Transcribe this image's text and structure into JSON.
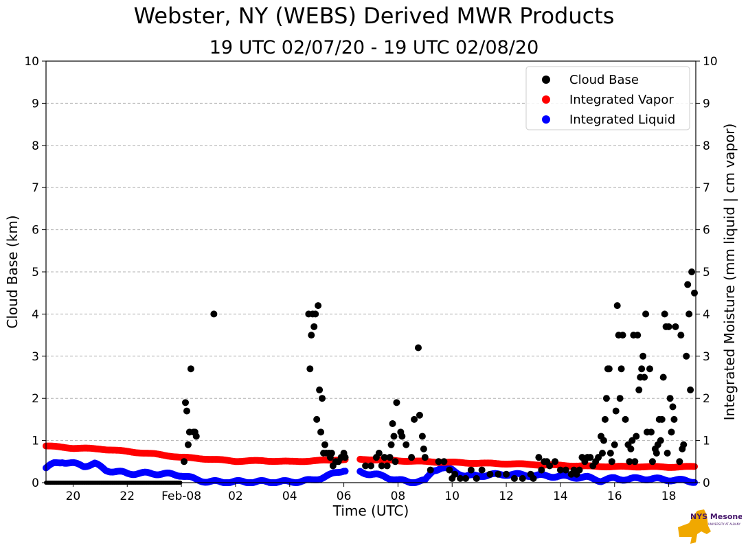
{
  "title": "Webster, NY (WEBS) Derived MWR Products",
  "subtitle": "19 UTC 02/07/20 - 19 UTC 02/08/20",
  "logo": {
    "text": "NYS Mesonet",
    "subtext": "UNIVERSITY AT ALBANY"
  },
  "colors": {
    "cloud_base": "#000000",
    "vapor": "#ff0000",
    "liquid": "#0000ff",
    "grid": "#b0b0b0",
    "logo_gold": "#f0a800",
    "logo_purple": "#46166b"
  },
  "chart_data": {
    "type": "scatter",
    "xlabel": "Time (UTC)",
    "ylabel": "Cloud Base (km)",
    "y2label": "Integrated Moisture (mm liquid | cm vapor)",
    "xlim": [
      0,
      24
    ],
    "x_unit": "hours since 19 UTC 02/07/20",
    "ylim": [
      0,
      10
    ],
    "y2lim": [
      0,
      10
    ],
    "x_ticks": [
      {
        "x": 1,
        "label": "20"
      },
      {
        "x": 3,
        "label": "22"
      },
      {
        "x": 5,
        "label": "Feb-08"
      },
      {
        "x": 7,
        "label": "02"
      },
      {
        "x": 9,
        "label": "04"
      },
      {
        "x": 11,
        "label": "06"
      },
      {
        "x": 13,
        "label": "08"
      },
      {
        "x": 15,
        "label": "10"
      },
      {
        "x": 17,
        "label": "12"
      },
      {
        "x": 19,
        "label": "14"
      },
      {
        "x": 21,
        "label": "16"
      },
      {
        "x": 23,
        "label": "18"
      }
    ],
    "y_ticks": [
      "0",
      "1",
      "2",
      "3",
      "4",
      "5",
      "6",
      "7",
      "8",
      "9",
      "10"
    ],
    "grid": "horizontal dashed",
    "legend_position": "top-right",
    "series": [
      {
        "name": "Cloud Base",
        "color": "#000000",
        "axis": "left",
        "points": [
          [
            5.1,
            0.5
          ],
          [
            5.15,
            1.9
          ],
          [
            5.2,
            1.7
          ],
          [
            5.25,
            0.9
          ],
          [
            5.3,
            1.2
          ],
          [
            5.35,
            2.7
          ],
          [
            5.45,
            1.2
          ],
          [
            5.5,
            1.2
          ],
          [
            5.55,
            1.1
          ],
          [
            6.2,
            4.0
          ],
          [
            9.7,
            4.0
          ],
          [
            9.75,
            2.7
          ],
          [
            9.8,
            3.5
          ],
          [
            9.85,
            4.0
          ],
          [
            9.9,
            3.7
          ],
          [
            9.95,
            4.0
          ],
          [
            10.0,
            1.5
          ],
          [
            10.05,
            4.2
          ],
          [
            10.1,
            2.2
          ],
          [
            10.15,
            1.2
          ],
          [
            10.2,
            2.0
          ],
          [
            10.25,
            0.7
          ],
          [
            10.3,
            0.9
          ],
          [
            10.35,
            0.7
          ],
          [
            10.45,
            0.7
          ],
          [
            10.5,
            0.6
          ],
          [
            10.55,
            0.7
          ],
          [
            10.6,
            0.4
          ],
          [
            10.7,
            0.5
          ],
          [
            10.8,
            0.5
          ],
          [
            10.9,
            0.6
          ],
          [
            11.0,
            0.7
          ],
          [
            11.05,
            0.6
          ],
          [
            11.8,
            0.4
          ],
          [
            12.0,
            0.4
          ],
          [
            12.2,
            0.6
          ],
          [
            12.3,
            0.7
          ],
          [
            12.4,
            0.4
          ],
          [
            12.5,
            0.6
          ],
          [
            12.6,
            0.4
          ],
          [
            12.7,
            0.6
          ],
          [
            12.75,
            0.9
          ],
          [
            12.8,
            1.4
          ],
          [
            12.85,
            1.1
          ],
          [
            12.9,
            0.5
          ],
          [
            12.95,
            1.9
          ],
          [
            13.1,
            1.2
          ],
          [
            13.15,
            1.1
          ],
          [
            13.3,
            0.9
          ],
          [
            13.5,
            0.6
          ],
          [
            13.6,
            1.5
          ],
          [
            13.75,
            3.2
          ],
          [
            13.8,
            1.6
          ],
          [
            13.9,
            1.1
          ],
          [
            13.95,
            0.8
          ],
          [
            14.0,
            0.6
          ],
          [
            14.2,
            0.3
          ],
          [
            14.5,
            0.5
          ],
          [
            14.7,
            0.5
          ],
          [
            14.9,
            0.3
          ],
          [
            15.0,
            0.1
          ],
          [
            15.1,
            0.2
          ],
          [
            15.3,
            0.1
          ],
          [
            15.5,
            0.1
          ],
          [
            15.7,
            0.3
          ],
          [
            15.9,
            0.1
          ],
          [
            16.1,
            0.3
          ],
          [
            16.4,
            0.2
          ],
          [
            16.7,
            0.2
          ],
          [
            17.0,
            0.2
          ],
          [
            17.3,
            0.1
          ],
          [
            17.6,
            0.1
          ],
          [
            17.9,
            0.2
          ],
          [
            18.0,
            0.1
          ],
          [
            18.2,
            0.6
          ],
          [
            18.3,
            0.3
          ],
          [
            18.4,
            0.5
          ],
          [
            18.5,
            0.5
          ],
          [
            18.6,
            0.4
          ],
          [
            18.8,
            0.5
          ],
          [
            19.0,
            0.3
          ],
          [
            19.2,
            0.3
          ],
          [
            19.4,
            0.2
          ],
          [
            19.5,
            0.3
          ],
          [
            19.6,
            0.2
          ],
          [
            19.7,
            0.3
          ],
          [
            19.8,
            0.6
          ],
          [
            19.9,
            0.5
          ],
          [
            20.0,
            0.6
          ],
          [
            20.1,
            0.6
          ],
          [
            20.2,
            0.4
          ],
          [
            20.3,
            0.5
          ],
          [
            20.4,
            0.6
          ],
          [
            20.5,
            1.1
          ],
          [
            20.55,
            0.7
          ],
          [
            20.6,
            1.0
          ],
          [
            20.65,
            1.5
          ],
          [
            20.7,
            2.0
          ],
          [
            20.75,
            2.7
          ],
          [
            20.8,
            2.7
          ],
          [
            20.85,
            0.7
          ],
          [
            20.9,
            0.5
          ],
          [
            21.0,
            0.9
          ],
          [
            21.05,
            1.7
          ],
          [
            21.1,
            4.2
          ],
          [
            21.15,
            3.5
          ],
          [
            21.2,
            2.0
          ],
          [
            21.25,
            2.7
          ],
          [
            21.3,
            3.5
          ],
          [
            21.4,
            1.5
          ],
          [
            21.5,
            0.9
          ],
          [
            21.55,
            0.5
          ],
          [
            21.6,
            0.8
          ],
          [
            21.65,
            1.0
          ],
          [
            21.7,
            3.5
          ],
          [
            21.75,
            0.5
          ],
          [
            21.8,
            1.1
          ],
          [
            21.85,
            3.5
          ],
          [
            21.9,
            2.2
          ],
          [
            21.95,
            2.5
          ],
          [
            22.0,
            2.7
          ],
          [
            22.05,
            3.0
          ],
          [
            22.1,
            2.5
          ],
          [
            22.15,
            4.0
          ],
          [
            22.2,
            1.2
          ],
          [
            22.3,
            2.7
          ],
          [
            22.35,
            1.2
          ],
          [
            22.4,
            0.5
          ],
          [
            22.5,
            0.8
          ],
          [
            22.55,
            0.7
          ],
          [
            22.6,
            0.9
          ],
          [
            22.65,
            1.5
          ],
          [
            22.7,
            1.0
          ],
          [
            22.75,
            1.5
          ],
          [
            22.8,
            2.5
          ],
          [
            22.85,
            4.0
          ],
          [
            22.9,
            3.7
          ],
          [
            22.95,
            0.7
          ],
          [
            23.0,
            3.7
          ],
          [
            23.05,
            2.0
          ],
          [
            23.1,
            1.2
          ],
          [
            23.15,
            1.8
          ],
          [
            23.2,
            1.5
          ],
          [
            23.25,
            3.7
          ],
          [
            23.4,
            0.5
          ],
          [
            23.45,
            3.5
          ],
          [
            23.5,
            0.8
          ],
          [
            23.55,
            0.9
          ],
          [
            23.65,
            3.0
          ],
          [
            23.7,
            4.7
          ],
          [
            23.75,
            4.0
          ],
          [
            23.8,
            2.2
          ],
          [
            23.85,
            5.0
          ],
          [
            23.95,
            4.5
          ]
        ]
      },
      {
        "name": "Integrated Vapor",
        "color": "#ff0000",
        "axis": "right",
        "x": [
          0,
          1,
          2,
          3,
          4,
          5,
          6,
          7,
          8,
          9,
          10,
          11,
          12,
          13,
          14,
          15,
          16,
          17,
          18,
          19,
          20,
          21,
          22,
          23,
          24
        ],
        "values": [
          0.87,
          0.82,
          0.8,
          0.74,
          0.68,
          0.6,
          0.56,
          0.51,
          0.52,
          0.5,
          0.52,
          0.55,
          0.55,
          0.52,
          0.5,
          0.48,
          0.46,
          0.45,
          0.43,
          0.41,
          0.39,
          0.38,
          0.38,
          0.37,
          0.38
        ],
        "gap_x_ranges": [
          [
            11.1,
            11.6
          ]
        ]
      },
      {
        "name": "Integrated Liquid",
        "color": "#0000ff",
        "axis": "right",
        "x": [
          0,
          0.3,
          0.6,
          1.0,
          1.4,
          1.8,
          2.2,
          3,
          4,
          5,
          5.5,
          6,
          7,
          8,
          9,
          9.8,
          10.5,
          11,
          11.5,
          12,
          12.5,
          13,
          13.5,
          14,
          14.3,
          14.6,
          15,
          15.5,
          16,
          17,
          18,
          19,
          20,
          20.5,
          21,
          21.5,
          22,
          23,
          24
        ],
        "values": [
          0.35,
          0.45,
          0.5,
          0.45,
          0.4,
          0.45,
          0.3,
          0.22,
          0.22,
          0.18,
          0.08,
          0.02,
          0.02,
          0.02,
          0.02,
          0.05,
          0.18,
          0.3,
          0.28,
          0.2,
          0.15,
          0.05,
          0.02,
          0.04,
          0.3,
          0.35,
          0.3,
          0.15,
          0.17,
          0.2,
          0.17,
          0.15,
          0.12,
          0.05,
          0.1,
          0.08,
          0.1,
          0.07,
          0.03
        ],
        "gap_x_ranges": [
          [
            11.1,
            11.6
          ]
        ]
      }
    ]
  }
}
